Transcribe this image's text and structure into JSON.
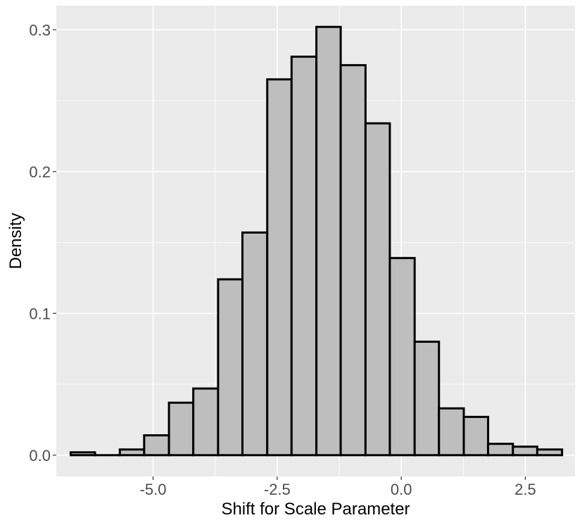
{
  "chart_data": {
    "type": "histogram",
    "title": "",
    "xlabel": "Shift for Scale Parameter",
    "ylabel": "Density",
    "xlim": [
      -6.95,
      3.5
    ],
    "ylim": [
      -0.015,
      0.317
    ],
    "xticks": [
      -5.0,
      -2.5,
      0.0,
      2.5
    ],
    "xtick_labels": [
      "-5.0",
      "-2.5",
      "0.0",
      "2.5"
    ],
    "yticks": [
      0.0,
      0.1,
      0.2,
      0.3
    ],
    "ytick_labels": [
      "0.0",
      "0.1",
      "0.2",
      "0.3"
    ],
    "grid": true,
    "legend": "none",
    "colors": {
      "panel_background": "#ebebeb",
      "grid_major": "#ffffff",
      "bar_fill": "#bebebe",
      "bar_outline": "#000000"
    },
    "bins": [
      {
        "start": -6.66,
        "end": -6.17,
        "density": 0.002
      },
      {
        "start": -6.17,
        "end": -5.67,
        "density": 0.0
      },
      {
        "start": -5.67,
        "end": -5.18,
        "density": 0.004
      },
      {
        "start": -5.18,
        "end": -4.68,
        "density": 0.014
      },
      {
        "start": -4.68,
        "end": -4.19,
        "density": 0.037
      },
      {
        "start": -4.19,
        "end": -3.69,
        "density": 0.047
      },
      {
        "start": -3.69,
        "end": -3.2,
        "density": 0.124
      },
      {
        "start": -3.2,
        "end": -2.7,
        "density": 0.157
      },
      {
        "start": -2.7,
        "end": -2.21,
        "density": 0.265
      },
      {
        "start": -2.21,
        "end": -1.71,
        "density": 0.281
      },
      {
        "start": -1.71,
        "end": -1.22,
        "density": 0.302
      },
      {
        "start": -1.22,
        "end": -0.72,
        "density": 0.275
      },
      {
        "start": -0.72,
        "end": -0.23,
        "density": 0.234
      },
      {
        "start": -0.23,
        "end": 0.27,
        "density": 0.139
      },
      {
        "start": 0.27,
        "end": 0.76,
        "density": 0.08
      },
      {
        "start": 0.76,
        "end": 1.26,
        "density": 0.033
      },
      {
        "start": 1.26,
        "end": 1.75,
        "density": 0.027
      },
      {
        "start": 1.75,
        "end": 2.25,
        "density": 0.008
      },
      {
        "start": 2.25,
        "end": 2.74,
        "density": 0.006
      },
      {
        "start": 2.74,
        "end": 3.24,
        "density": 0.004
      }
    ]
  }
}
